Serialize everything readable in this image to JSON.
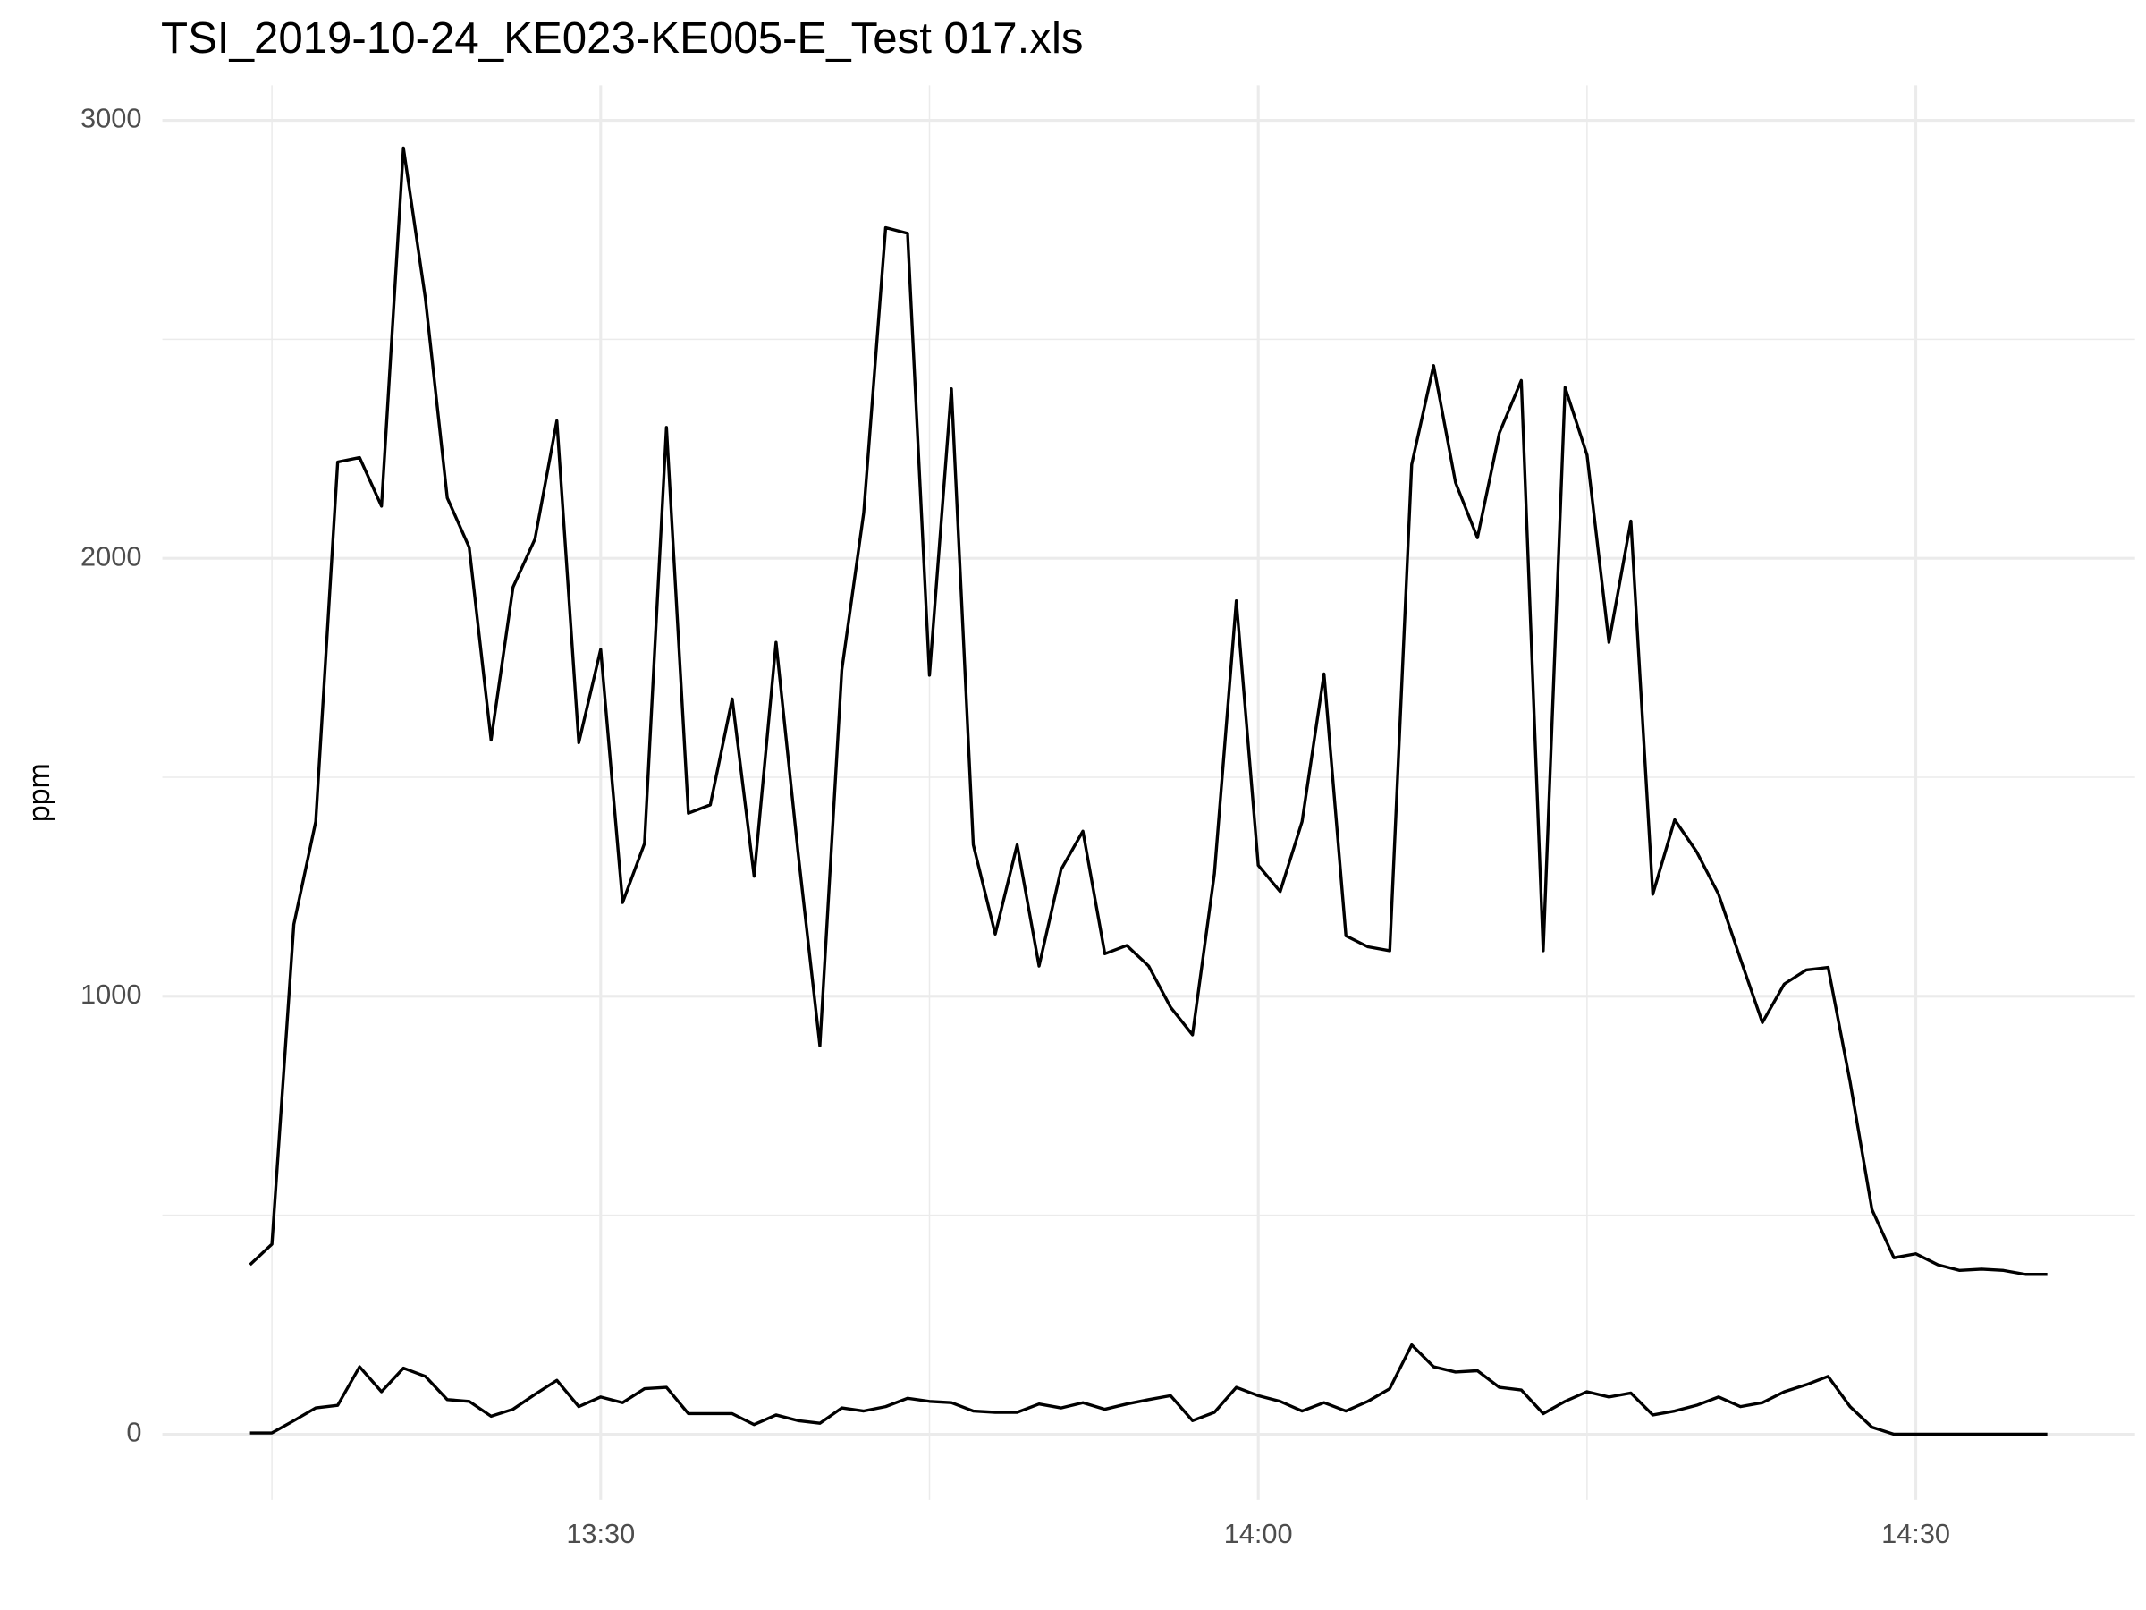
{
  "chart_data": {
    "type": "line",
    "title": "TSI_2019-10-24_KE023-KE005-E_Test 017.xls",
    "ylabel": "ppm",
    "x": [
      "13:14",
      "13:15",
      "13:16",
      "13:17",
      "13:18",
      "13:19",
      "13:20",
      "13:21",
      "13:22",
      "13:23",
      "13:24",
      "13:25",
      "13:26",
      "13:27",
      "13:28",
      "13:29",
      "13:30",
      "13:31",
      "13:32",
      "13:33",
      "13:34",
      "13:35",
      "13:36",
      "13:37",
      "13:38",
      "13:39",
      "13:40",
      "13:41",
      "13:42",
      "13:43",
      "13:44",
      "13:45",
      "13:46",
      "13:47",
      "13:48",
      "13:49",
      "13:50",
      "13:51",
      "13:52",
      "13:53",
      "13:54",
      "13:55",
      "13:56",
      "13:57",
      "13:58",
      "13:59",
      "14:00",
      "14:01",
      "14:02",
      "14:03",
      "14:04",
      "14:05",
      "14:06",
      "14:07",
      "14:08",
      "14:09",
      "14:10",
      "14:11",
      "14:12",
      "14:13",
      "14:14",
      "14:15",
      "14:16",
      "14:17",
      "14:18",
      "14:19",
      "14:20",
      "14:21",
      "14:22",
      "14:23",
      "14:24",
      "14:25",
      "14:26",
      "14:27",
      "14:28",
      "14:29",
      "14:30",
      "14:31",
      "14:32",
      "14:33",
      "14:34",
      "14:35",
      "14:36"
    ],
    "series": [
      {
        "color": "#000000",
        "values": [
          387,
          434,
          1164,
          1399,
          2220,
          2230,
          2119,
          2937,
          2594,
          2138,
          2025,
          1585,
          1934,
          2044,
          2314,
          1579,
          1792,
          1214,
          1349,
          2299,
          1418,
          1437,
          1679,
          1274,
          1808,
          1330,
          887,
          1745,
          2104,
          2755,
          2742,
          1733,
          2387,
          1346,
          1142,
          1346,
          1069,
          1289,
          1377,
          1097,
          1116,
          1069,
          975,
          912,
          1280,
          1903,
          1299,
          1239,
          1399,
          1736,
          1138,
          1113,
          1104,
          2214,
          2440,
          2173,
          2047,
          2286,
          2406,
          1104,
          2390,
          2236,
          1808,
          2085,
          1233,
          1403,
          1330,
          1233,
          1085,
          940,
          1028,
          1060,
          1066,
          805,
          513,
          403,
          412,
          387,
          374,
          377,
          374,
          365,
          365
        ]
      },
      {
        "color": "#000000",
        "values": [
          3,
          3,
          31,
          60,
          66,
          154,
          97,
          151,
          132,
          79,
          75,
          41,
          57,
          91,
          123,
          63,
          85,
          72,
          104,
          107,
          47,
          47,
          47,
          22,
          44,
          31,
          25,
          60,
          53,
          63,
          82,
          75,
          72,
          53,
          50,
          50,
          69,
          60,
          72,
          57,
          69,
          79,
          88,
          31,
          50,
          107,
          88,
          75,
          53,
          72,
          53,
          75,
          104,
          204,
          154,
          142,
          145,
          107,
          101,
          47,
          75,
          97,
          85,
          94,
          44,
          53,
          66,
          85,
          63,
          72,
          97,
          113,
          132,
          63,
          16,
          0,
          0,
          0,
          0,
          0,
          0,
          0,
          0
        ]
      }
    ],
    "xlim": [
      "13:10",
      "14:40"
    ],
    "xticks": [
      "13:30",
      "14:00",
      "14:30"
    ],
    "ylim": [
      -150,
      3080
    ],
    "yticks": [
      0,
      1000,
      2000,
      3000
    ],
    "grid": true
  }
}
